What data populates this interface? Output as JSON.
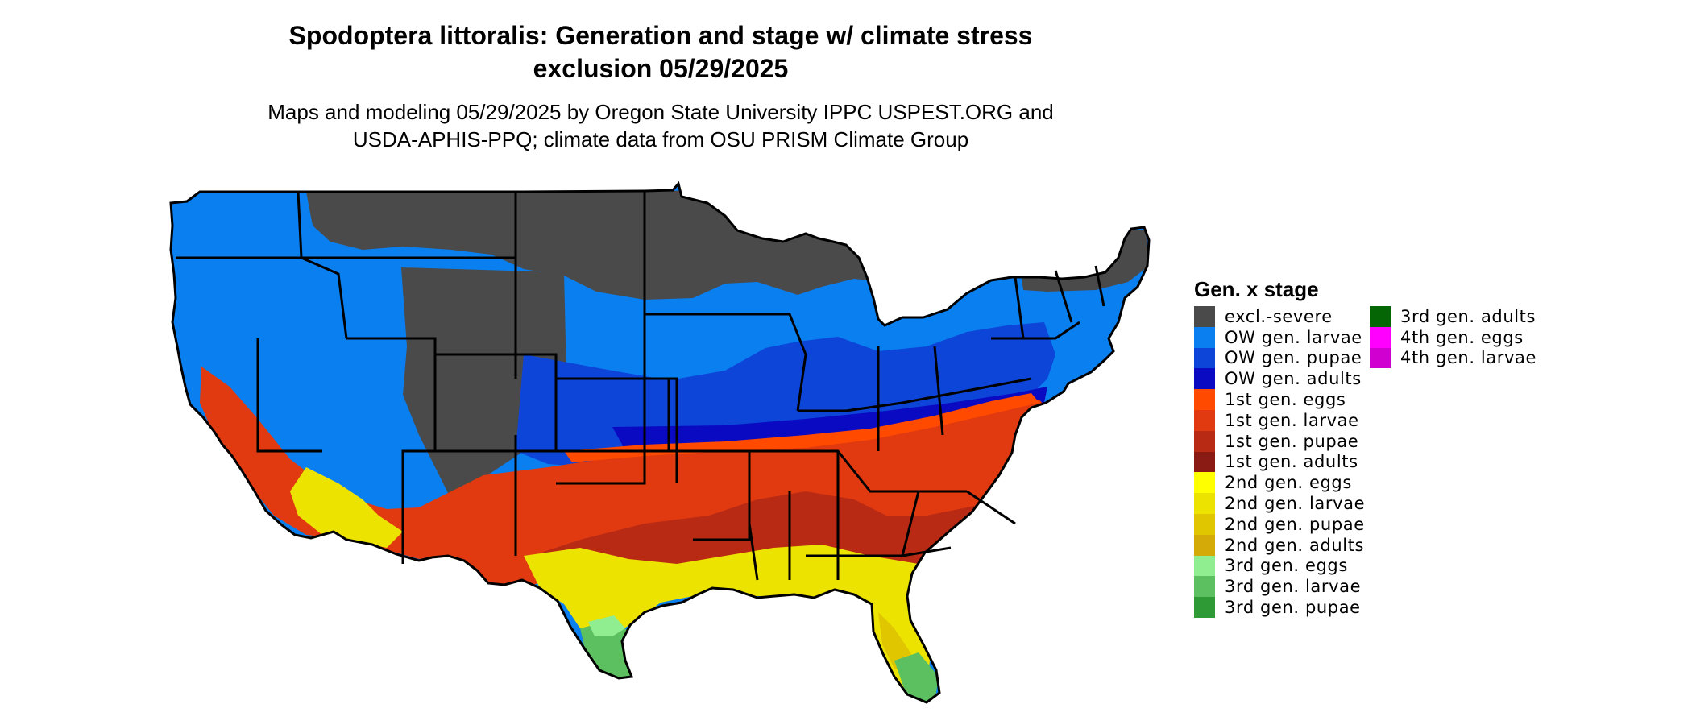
{
  "title_line1": "Spodoptera littoralis: Generation and stage w/ climate stress",
  "title_line2": "exclusion 05/29/2025",
  "subtitle_line1": "Maps and modeling 05/29/2025 by Oregon State University IPPC USPEST.ORG and",
  "subtitle_line2": "USDA-APHIS-PPQ; climate data from OSU PRISM Climate Group",
  "legend": {
    "title": "Gen. x stage",
    "col1": [
      {
        "label": "excl.-severe",
        "color": "#4a4a4a"
      },
      {
        "label": "OW gen. larvae",
        "color": "#0a7ff0"
      },
      {
        "label": "OW gen. pupae",
        "color": "#0c45d8"
      },
      {
        "label": "OW gen. adults",
        "color": "#0a0ac2"
      },
      {
        "label": "1st gen. eggs",
        "color": "#ff4a00"
      },
      {
        "label": "1st gen. larvae",
        "color": "#e13a10"
      },
      {
        "label": "1st gen. pupae",
        "color": "#b82a14"
      },
      {
        "label": "1st gen. adults",
        "color": "#8a1a14"
      },
      {
        "label": "2nd gen. eggs",
        "color": "#ffff00"
      },
      {
        "label": "2nd gen. larvae",
        "color": "#ede300"
      },
      {
        "label": "2nd gen. pupae",
        "color": "#e0c600"
      },
      {
        "label": "2nd gen. adults",
        "color": "#d4aa08"
      },
      {
        "label": "3rd gen. eggs",
        "color": "#90ee90"
      },
      {
        "label": "3rd gen. larvae",
        "color": "#5cc060"
      },
      {
        "label": "3rd gen. pupae",
        "color": "#2e9a36"
      }
    ],
    "col2": [
      {
        "label": "3rd gen. adults",
        "color": "#046604"
      },
      {
        "label": "4th gen. eggs",
        "color": "#ff00ff"
      },
      {
        "label": "4th gen. larvae",
        "color": "#d000d0"
      }
    ]
  }
}
